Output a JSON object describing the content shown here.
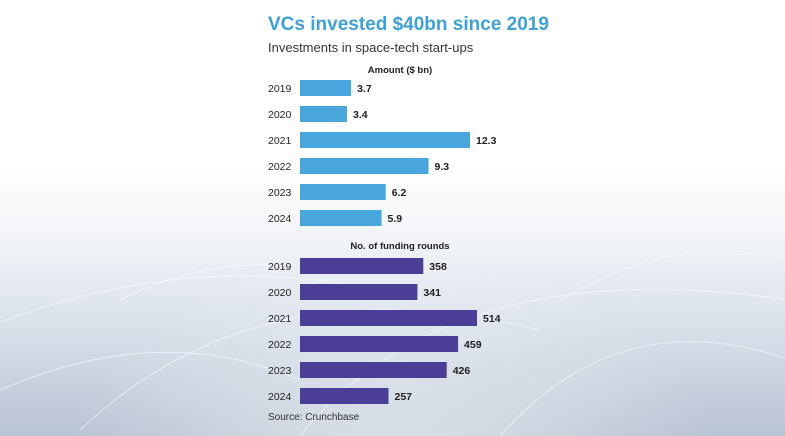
{
  "title": "VCs invested $40bn since 2019",
  "subtitle": "Investments in space-tech start-ups",
  "source": "Source: Crunchbase",
  "colors": {
    "amount_bar": "#49a6dc",
    "rounds_bar": "#4b3e96",
    "title": "#3fa0d6",
    "text": "#222222"
  },
  "chart_data": [
    {
      "type": "bar",
      "orientation": "horizontal",
      "title": "Amount ($ bn)",
      "categories": [
        "2019",
        "2020",
        "2021",
        "2022",
        "2023",
        "2024"
      ],
      "values": [
        3.7,
        3.4,
        12.3,
        9.3,
        6.2,
        5.9
      ],
      "labels": [
        "3.7",
        "3.4",
        "12.3",
        "9.3",
        "6.2",
        "5.9"
      ],
      "xlim": [
        0,
        12.3
      ],
      "grid": false,
      "legend": "none"
    },
    {
      "type": "bar",
      "orientation": "horizontal",
      "title": "No. of funding rounds",
      "categories": [
        "2019",
        "2020",
        "2021",
        "2022",
        "2023",
        "2024"
      ],
      "values": [
        358,
        341,
        514,
        459,
        426,
        257
      ],
      "labels": [
        "358",
        "341",
        "514",
        "459",
        "426",
        "257"
      ],
      "xlim": [
        0,
        514
      ],
      "grid": false,
      "legend": "none"
    }
  ]
}
